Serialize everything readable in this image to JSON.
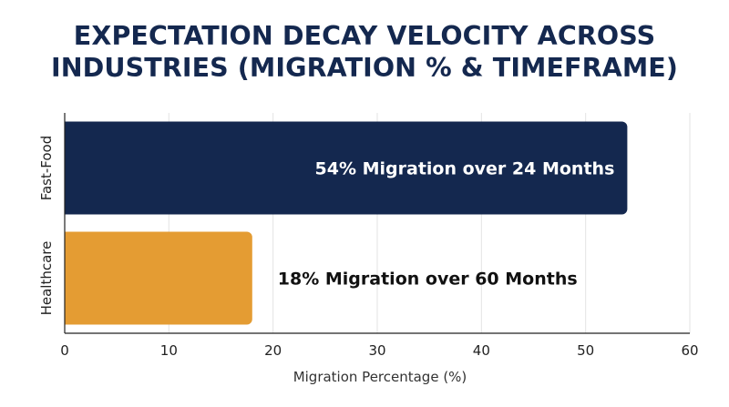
{
  "title": {
    "line1": "EXPECTATION DECAY VELOCITY ACROSS",
    "line2": "INDUSTRIES (MIGRATION % & TIMEFRAME)"
  },
  "colors": {
    "title": "#14284f",
    "fast_food_bar": "#14284f",
    "healthcare_bar": "#e49c33",
    "grid": "#e3e3e3",
    "axis": "#222222",
    "label_light": "#ffffff",
    "label_dark": "#111111"
  },
  "chart_data": {
    "type": "bar",
    "orientation": "horizontal",
    "title": "EXPECTATION DECAY VELOCITY ACROSS INDUSTRIES (MIGRATION % & TIMEFRAME)",
    "xlabel": "Migration Percentage (%)",
    "ylabel": "",
    "xlim": [
      0,
      60
    ],
    "xticks": [
      0,
      10,
      20,
      30,
      40,
      50,
      60
    ],
    "grid": "vertical",
    "categories": [
      "Fast-Food",
      "Healthcare"
    ],
    "values": [
      54,
      18
    ],
    "annotations": [
      "54% Migration over 24 Months",
      "18% Migration over 60 Months"
    ],
    "annotation_placement": [
      "inside",
      "outside"
    ],
    "bar_colors": [
      "#14284f",
      "#e49c33"
    ]
  }
}
